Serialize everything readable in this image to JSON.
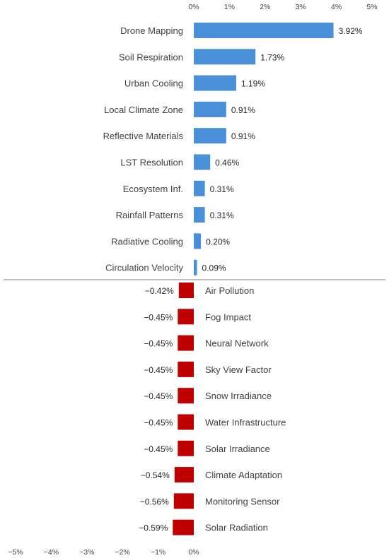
{
  "chart_data": {
    "type": "bar",
    "orientation": "horizontal",
    "top_axis_ticks": [
      "0%",
      "1%",
      "2%",
      "3%",
      "4%",
      "5%"
    ],
    "bottom_axis_ticks": [
      "−5%",
      "−4%",
      "−3%",
      "−2%",
      "−1%",
      "0%"
    ],
    "xlim_top": [
      0,
      5
    ],
    "xlim_bottom": [
      -5,
      0
    ],
    "positive": {
      "color": "#4a90d9",
      "categories": [
        "Drone Mapping",
        "Soil Respiration",
        "Urban Cooling",
        "Local Climate Zone",
        "Reflective Materials",
        "LST Resolution",
        "Ecosystem Inf.",
        "Rainfall Patterns",
        "Radiative Cooling",
        "Circulation Velocity"
      ],
      "values": [
        3.92,
        1.73,
        1.19,
        0.91,
        0.91,
        0.46,
        0.31,
        0.31,
        0.2,
        0.09
      ],
      "labels": [
        "3.92%",
        "1.73%",
        "1.19%",
        "0.91%",
        "0.91%",
        "0.46%",
        "0.31%",
        "0.31%",
        "0.20%",
        "0.09%"
      ]
    },
    "negative": {
      "color": "#c00000",
      "categories": [
        "Air Pollution",
        "Fog Impact",
        "Neural Network",
        "Sky View Factor",
        "Snow Irradiance",
        "Water Infrastructure",
        "Solar Irradiance",
        "Climate Adaptation",
        "Monitoring Sensor",
        "Solar Radiation"
      ],
      "values": [
        -0.42,
        -0.45,
        -0.45,
        -0.45,
        -0.45,
        -0.45,
        -0.45,
        -0.54,
        -0.56,
        -0.59
      ],
      "labels": [
        "−0.42%",
        "−0.45%",
        "−0.45%",
        "−0.45%",
        "−0.45%",
        "−0.45%",
        "−0.45%",
        "−0.54%",
        "−0.56%",
        "−0.59%"
      ]
    },
    "grid": false,
    "legend": "none"
  }
}
